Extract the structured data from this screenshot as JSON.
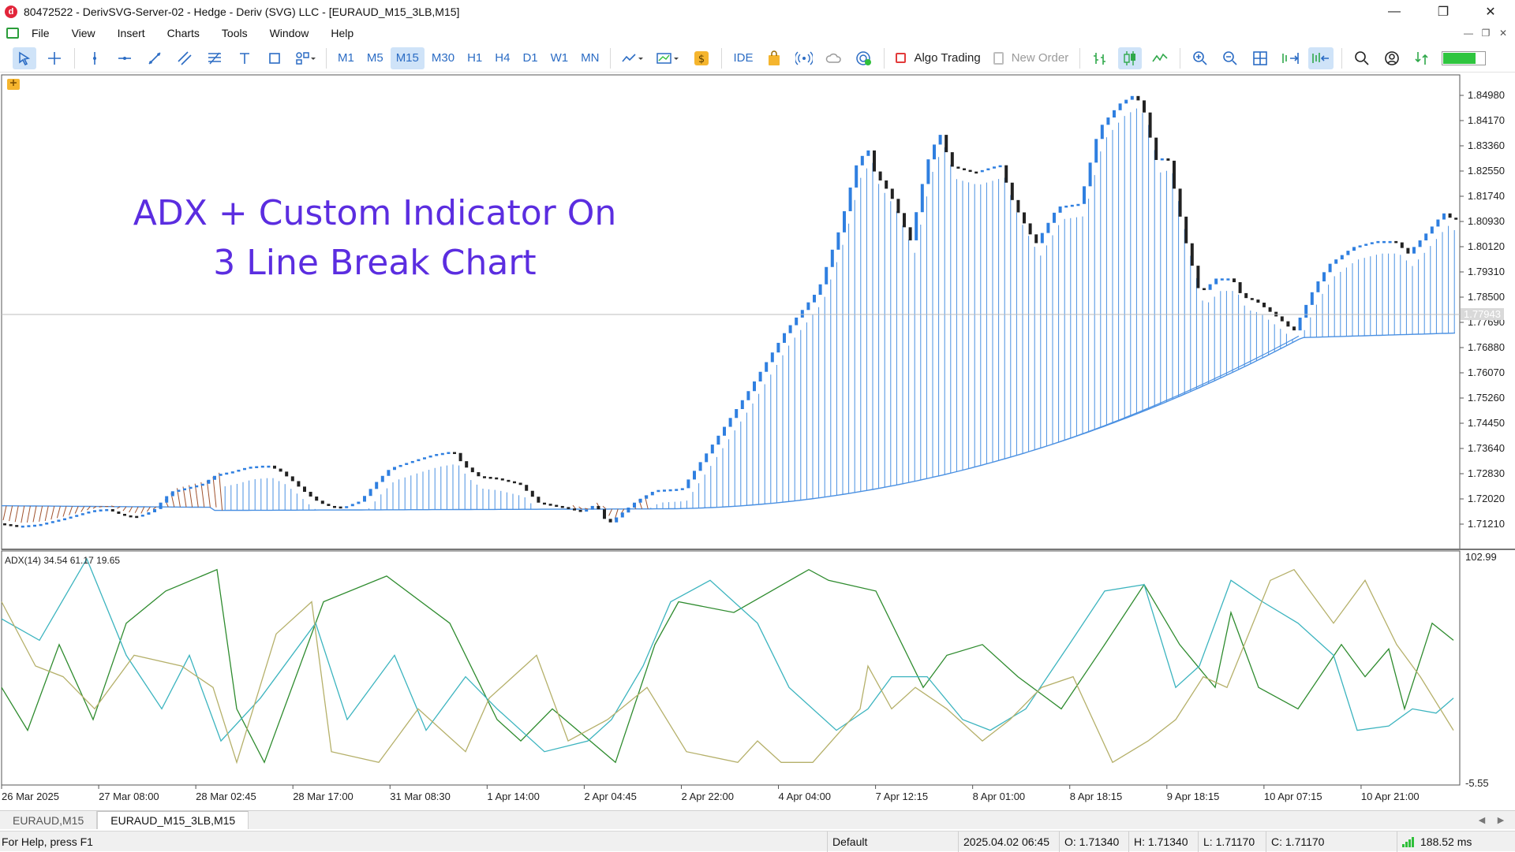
{
  "window": {
    "title": "80472522 - DerivSVG-Server-02 - Hedge - Deriv (SVG) LLC - [EURAUD_M15_3LB,M15]",
    "app_icon": "d"
  },
  "menu": [
    "File",
    "View",
    "Insert",
    "Charts",
    "Tools",
    "Window",
    "Help"
  ],
  "toolbar": {
    "timeframes": [
      "M1",
      "M5",
      "M15",
      "M30",
      "H1",
      "H4",
      "D1",
      "W1",
      "MN"
    ],
    "active_timeframe": "M15",
    "ide_label": "IDE",
    "algo_trading_label": "Algo Trading",
    "new_order_label": "New Order",
    "connection_strength": 0.75,
    "accent": "#2b6cc4"
  },
  "chart": {
    "overlay_title": [
      "ADX + Custom Indicator On",
      "3 Line Break Chart"
    ],
    "overlay_color": "#5b2de0",
    "price_axis": [
      "1.84980",
      "1.84170",
      "1.83360",
      "1.82550",
      "1.81740",
      "1.80930",
      "1.80120",
      "1.79310",
      "1.78500",
      "1.77690",
      "1.76880",
      "1.76070",
      "1.75260",
      "1.74450",
      "1.73640",
      "1.72830",
      "1.72020",
      "1.71210"
    ],
    "current_price": "1.77943",
    "adx_label": "ADX(14) 34.54 61.17 19.65",
    "adx_axis_top": "102.99",
    "adx_axis_bottom": "-5.55",
    "time_axis": [
      "26 Mar 2025",
      "27 Mar 08:00",
      "28 Mar 02:45",
      "28 Mar 17:00",
      "31 Mar 08:30",
      "1 Apr 14:00",
      "2 Apr 04:45",
      "2 Apr 22:00",
      "4 Apr 04:00",
      "7 Apr 12:15",
      "8 Apr 01:00",
      "8 Apr 18:15",
      "9 Apr 18:15",
      "10 Apr 07:15",
      "10 Apr 21:00"
    ],
    "colors": {
      "bull": "#2f7fe0",
      "bear": "#222222",
      "ribbon_up": "#4a90e2",
      "ribbon_down": "#a0522d",
      "adx": "#3cb4bf",
      "plus_di": "#2e8b2e",
      "minus_di": "#b5b06a"
    }
  },
  "tabs": [
    {
      "label": "EURAUD,M15",
      "active": false
    },
    {
      "label": "EURAUD_M15_3LB,M15",
      "active": true
    }
  ],
  "status": {
    "help": "For Help, press F1",
    "profile": "Default",
    "datetime": "2025.04.02 06:45",
    "open": "O: 1.71340",
    "high": "H: 1.71340",
    "low": "L: 1.71170",
    "close": "C: 1.71170",
    "ping": "188.52 ms"
  }
}
